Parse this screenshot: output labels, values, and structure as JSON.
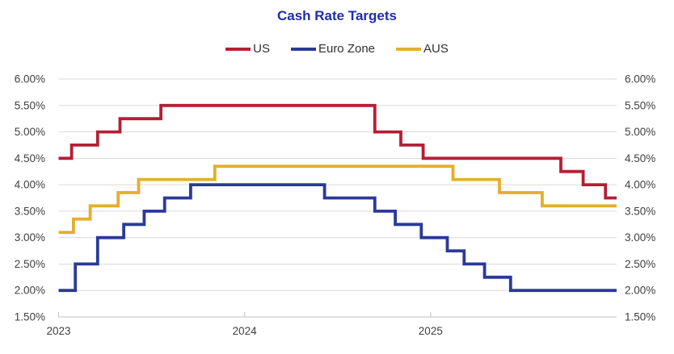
{
  "title": "Cash Rate Targets",
  "colors": {
    "title": "#1F2DA8",
    "axis_text": "#404040",
    "gridline": "#D9D9D9",
    "axis_line": "#BFBFBF",
    "background": "#FFFFFF",
    "us_red": "#B41F35",
    "eurozone_blue": "#2B3A97",
    "aus_gold": "#E3AF2C"
  },
  "chart_data": {
    "type": "line",
    "subtype": "step",
    "title": "Cash Rate Targets",
    "xlabel": "",
    "ylabel": "",
    "grid": true,
    "legend_position": "top",
    "x_range": [
      2023,
      2026
    ],
    "y_range": [
      1.5,
      6.0
    ],
    "x_ticks": [
      {
        "value": 2023,
        "label": "2023"
      },
      {
        "value": 2024,
        "label": "2024"
      },
      {
        "value": 2025,
        "label": "2025"
      }
    ],
    "y_ticks": [
      {
        "value": 1.5,
        "label": "1.50%"
      },
      {
        "value": 2.0,
        "label": "2.00%"
      },
      {
        "value": 2.5,
        "label": "2.50%"
      },
      {
        "value": 3.0,
        "label": "3.00%"
      },
      {
        "value": 3.5,
        "label": "3.50%"
      },
      {
        "value": 4.0,
        "label": "4.00%"
      },
      {
        "value": 4.5,
        "label": "4.50%"
      },
      {
        "value": 5.0,
        "label": "5.00%"
      },
      {
        "value": 5.5,
        "label": "5.50%"
      },
      {
        "value": 6.0,
        "label": "6.00%"
      }
    ],
    "y_axis_sides": [
      "left",
      "right"
    ],
    "series": [
      {
        "name": "US",
        "color": "#B41F35",
        "step_points": [
          [
            2023.0,
            4.5
          ],
          [
            2023.07,
            4.75
          ],
          [
            2023.21,
            5.0
          ],
          [
            2023.33,
            5.25
          ],
          [
            2023.55,
            5.5
          ],
          [
            2024.7,
            5.0
          ],
          [
            2024.84,
            4.75
          ],
          [
            2024.96,
            4.5
          ],
          [
            2025.7,
            4.25
          ],
          [
            2025.82,
            4.0
          ],
          [
            2025.94,
            3.75
          ]
        ]
      },
      {
        "name": "Euro Zone",
        "color": "#2B3A97",
        "step_points": [
          [
            2023.0,
            2.0
          ],
          [
            2023.09,
            2.5
          ],
          [
            2023.21,
            3.0
          ],
          [
            2023.35,
            3.25
          ],
          [
            2023.46,
            3.5
          ],
          [
            2023.57,
            3.75
          ],
          [
            2023.71,
            4.0
          ],
          [
            2024.43,
            3.75
          ],
          [
            2024.7,
            3.5
          ],
          [
            2024.81,
            3.25
          ],
          [
            2024.95,
            3.0
          ],
          [
            2025.09,
            2.75
          ],
          [
            2025.18,
            2.5
          ],
          [
            2025.29,
            2.25
          ],
          [
            2025.43,
            2.0
          ]
        ]
      },
      {
        "name": "AUS",
        "color": "#E3AF2C",
        "step_points": [
          [
            2023.0,
            3.1
          ],
          [
            2023.08,
            3.35
          ],
          [
            2023.17,
            3.6
          ],
          [
            2023.32,
            3.85
          ],
          [
            2023.43,
            4.1
          ],
          [
            2023.84,
            4.35
          ],
          [
            2025.12,
            4.1
          ],
          [
            2025.37,
            3.85
          ],
          [
            2025.6,
            3.6
          ]
        ]
      }
    ]
  }
}
